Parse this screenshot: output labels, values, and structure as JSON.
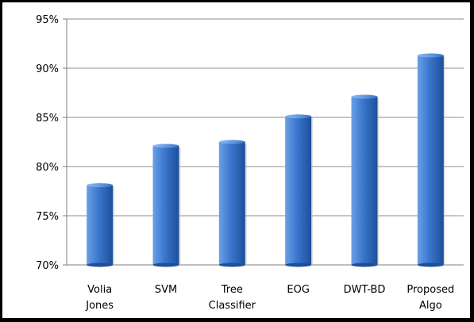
{
  "chart_data": {
    "type": "bar",
    "categories": [
      [
        "Volia",
        "Jones"
      ],
      [
        "SVM"
      ],
      [
        "Tree",
        "Classifier"
      ],
      [
        "EOG"
      ],
      [
        "DWT-BD"
      ],
      [
        "Proposed",
        "Algo"
      ]
    ],
    "values": [
      78.1,
      82.1,
      82.5,
      85.1,
      87.1,
      91.3
    ],
    "ylim": [
      70,
      95
    ],
    "yticks": [
      70,
      75,
      80,
      85,
      90,
      95
    ],
    "ytick_labels": [
      "70%",
      "75%",
      "80%",
      "85%",
      "90%",
      "95%"
    ],
    "grid": true,
    "legend": "none",
    "title": "",
    "xlabel": "",
    "ylabel": "",
    "colors": {
      "bar_light": "#6aa0e6",
      "bar_mid": "#3a76cc",
      "bar_dark": "#1d4f9a",
      "bar_top": "#8fbaf0",
      "grid": "#8c8c8c",
      "axis": "#7f7f7f"
    }
  }
}
